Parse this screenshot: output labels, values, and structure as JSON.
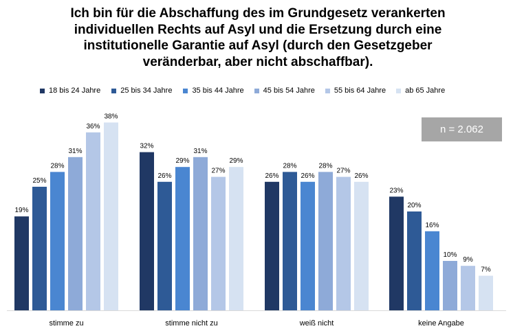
{
  "chart_data": {
    "type": "bar",
    "title_lines": [
      "Ich bin für die Abschaffung des im Grundgesetz verankerten",
      "individuellen Rechts auf Asyl und die Ersetzung durch eine",
      "institutionelle Garantie auf Asyl (durch den Gesetzgeber",
      "veränderbar, aber nicht abschaffbar)."
    ],
    "categories": [
      "stimme zu",
      "stimme nicht zu",
      "weiß nicht",
      "keine Angabe"
    ],
    "series": [
      {
        "name": "18 bis 24 Jahre",
        "color": "#203864",
        "values": [
          19,
          32,
          26,
          23
        ]
      },
      {
        "name": "25 bis 34 Jahre",
        "color": "#2e5a96",
        "values": [
          25,
          26,
          28,
          20
        ]
      },
      {
        "name": "35 bis 44 Jahre",
        "color": "#4a86d1",
        "values": [
          28,
          29,
          26,
          16
        ]
      },
      {
        "name": "45 bis 54 Jahre",
        "color": "#8eaad8",
        "values": [
          31,
          31,
          28,
          10
        ]
      },
      {
        "name": "55 bis 64 Jahre",
        "color": "#b4c7e7",
        "values": [
          36,
          27,
          27,
          9
        ]
      },
      {
        "name": "ab 65 Jahre",
        "color": "#d6e2f2",
        "values": [
          38,
          29,
          26,
          7
        ]
      }
    ],
    "value_suffix": "%",
    "ylim": [
      0,
      40
    ],
    "legend_position": "top",
    "grid": false,
    "annotation": "n = 2.062"
  }
}
